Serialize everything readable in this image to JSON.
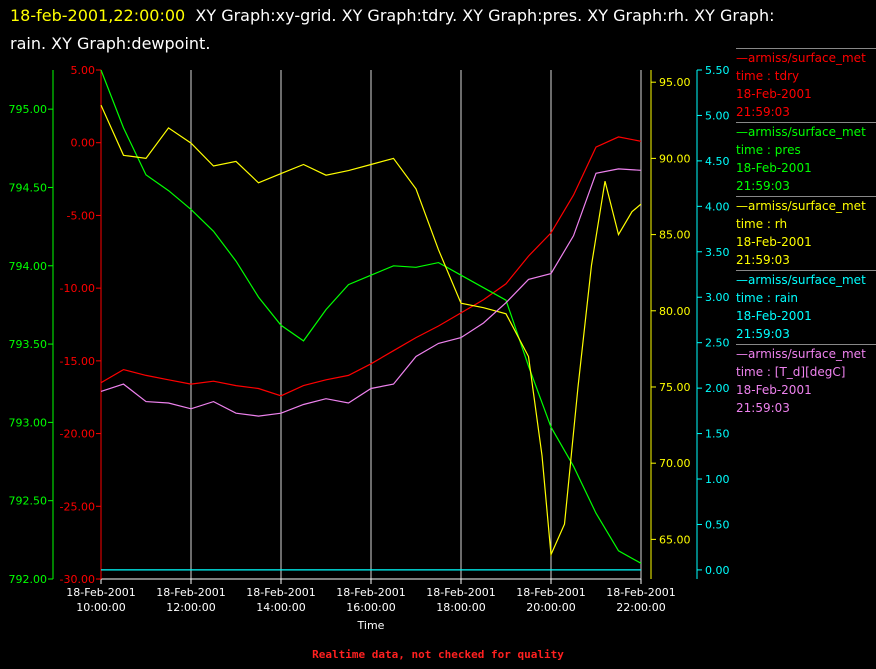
{
  "header": {
    "date": "18-feb-2001,22:00:00",
    "text": "XY Graph:xy-grid.  XY Graph:tdry.  XY Graph:pres.  XY Graph:rh.  XY Graph:",
    "text2": "rain.  XY Graph:dewpoint."
  },
  "footer": {
    "note": "Realtime data, not checked for quality"
  },
  "colors": {
    "tdry": "#ff0000",
    "pres": "#00ff00",
    "rh": "#ffff00",
    "rain": "#00ffff",
    "dewpoint": "#ee82ee",
    "grid": "#ffffff"
  },
  "legend": [
    {
      "key": "tdry",
      "source": "—armiss/surface_met",
      "var": "time : tdry",
      "date": "18-Feb-2001",
      "time": "21:59:03"
    },
    {
      "key": "pres",
      "source": "—armiss/surface_met",
      "var": "time : pres",
      "date": "18-Feb-2001",
      "time": "21:59:03"
    },
    {
      "key": "rh",
      "source": "—armiss/surface_met",
      "var": "time : rh",
      "date": "18-Feb-2001",
      "time": "21:59:03"
    },
    {
      "key": "rain",
      "source": "—armiss/surface_met",
      "var": "time : rain",
      "date": "18-Feb-2001",
      "time": "21:59:03"
    },
    {
      "key": "dewpoint",
      "source": "—armiss/surface_met",
      "var": "time : [T_d][degC]",
      "date": "18-Feb-2001",
      "time": "21:59:03"
    }
  ],
  "chart_data": {
    "type": "line",
    "xlabel": "Time",
    "x_ticks": [
      {
        "date": "18-Feb-2001",
        "time": "10:00:00"
      },
      {
        "date": "18-Feb-2001",
        "time": "12:00:00"
      },
      {
        "date": "18-Feb-2001",
        "time": "14:00:00"
      },
      {
        "date": "18-Feb-2001",
        "time": "16:00:00"
      },
      {
        "date": "18-Feb-2001",
        "time": "18:00:00"
      },
      {
        "date": "18-Feb-2001",
        "time": "20:00:00"
      },
      {
        "date": "18-Feb-2001",
        "time": "22:00:00"
      }
    ],
    "xlim_hours": [
      10,
      22
    ],
    "grid": "vertical",
    "axes": {
      "tdry": {
        "side": "left-inner",
        "range": [
          -30,
          5
        ],
        "ticks": [
          "5.00",
          "0.00",
          "-5.00",
          "-10.00",
          "-15.00",
          "-20.00",
          "-25.00",
          "-30.00"
        ]
      },
      "pres": {
        "side": "left-outer",
        "range": [
          792,
          795.25
        ],
        "ticks": [
          "795.00",
          "794.50",
          "794.00",
          "793.50",
          "793.00",
          "792.50",
          "792.00"
        ]
      },
      "rh": {
        "side": "right-inner",
        "range": [
          62.4,
          95.8
        ],
        "ticks": [
          "95.00",
          "90.00",
          "85.00",
          "80.00",
          "75.00",
          "70.00",
          "65.00"
        ]
      },
      "rain": {
        "side": "right-outer",
        "range": [
          -0.1,
          5.5
        ],
        "ticks": [
          "5.50",
          "5.00",
          "4.50",
          "4.00",
          "3.50",
          "3.00",
          "2.50",
          "2.00",
          "1.50",
          "1.00",
          "0.50",
          "0.00"
        ]
      }
    },
    "series": [
      {
        "key": "tdry",
        "x": [
          10.0,
          10.5,
          11.0,
          11.5,
          12.0,
          12.5,
          13.0,
          13.5,
          14.0,
          14.5,
          15.0,
          15.5,
          16.0,
          16.5,
          17.0,
          17.5,
          18.0,
          18.5,
          19.0,
          19.5,
          20.0,
          20.5,
          21.0,
          21.5,
          22.0
        ],
        "y": [
          -16.5,
          -15.6,
          -16.0,
          -16.3,
          -16.6,
          -16.4,
          -16.7,
          -16.9,
          -17.4,
          -16.7,
          -16.3,
          -16.0,
          -15.2,
          -14.3,
          -13.4,
          -12.6,
          -11.7,
          -10.8,
          -9.7,
          -7.8,
          -6.2,
          -3.6,
          -0.3,
          0.4,
          0.1
        ]
      },
      {
        "key": "pres",
        "x": [
          10.0,
          10.5,
          11.0,
          11.5,
          12.0,
          12.5,
          13.0,
          13.5,
          14.0,
          14.5,
          15.0,
          15.5,
          16.0,
          16.5,
          17.0,
          17.5,
          18.0,
          18.5,
          19.0,
          19.5,
          20.0,
          20.5,
          21.0,
          21.5,
          22.0
        ],
        "y": [
          795.25,
          794.88,
          794.58,
          794.48,
          794.36,
          794.22,
          794.03,
          793.8,
          793.62,
          793.52,
          793.72,
          793.88,
          793.94,
          794.0,
          793.99,
          794.02,
          793.94,
          793.86,
          793.78,
          793.36,
          792.97,
          792.72,
          792.42,
          792.18,
          792.1
        ]
      },
      {
        "key": "rh",
        "x": [
          10.0,
          10.5,
          11.0,
          11.5,
          12.0,
          12.5,
          13.0,
          13.5,
          14.0,
          14.5,
          15.0,
          15.5,
          16.0,
          16.5,
          17.0,
          17.5,
          18.0,
          18.5,
          19.0,
          19.5,
          19.8,
          20.0,
          20.3,
          20.6,
          20.9,
          21.2,
          21.5,
          21.8,
          22.0
        ],
        "y": [
          93.5,
          90.2,
          90.0,
          92.0,
          91.0,
          89.5,
          89.8,
          88.4,
          89.0,
          89.6,
          88.9,
          89.2,
          89.6,
          90.0,
          88.0,
          84.0,
          80.5,
          80.2,
          79.8,
          77.0,
          70.5,
          64.0,
          66.0,
          75.0,
          83.0,
          88.5,
          85.0,
          86.5,
          87.0
        ]
      },
      {
        "key": "rain",
        "x": [
          10.0,
          22.0
        ],
        "y": [
          0.0,
          0.0
        ]
      },
      {
        "key": "dewpoint",
        "x": [
          10.0,
          10.5,
          11.0,
          11.5,
          12.0,
          12.5,
          13.0,
          13.5,
          14.0,
          14.5,
          15.0,
          15.5,
          16.0,
          16.5,
          17.0,
          17.5,
          18.0,
          18.5,
          19.0,
          19.5,
          20.0,
          20.5,
          21.0,
          21.5,
          22.0
        ],
        "y": [
          -17.1,
          -16.6,
          -17.8,
          -17.9,
          -18.3,
          -17.8,
          -18.6,
          -18.8,
          -18.6,
          -18.0,
          -17.6,
          -17.9,
          -16.9,
          -16.6,
          -14.7,
          -13.8,
          -13.4,
          -12.4,
          -11.0,
          -9.4,
          -9.0,
          -6.4,
          -2.1,
          -1.8,
          -1.9
        ]
      }
    ]
  }
}
